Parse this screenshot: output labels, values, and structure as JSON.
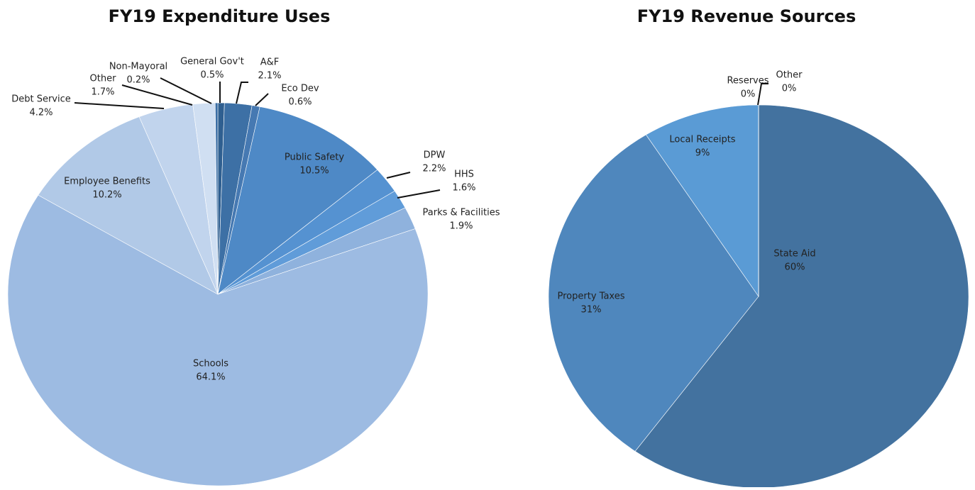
{
  "chart_data": [
    {
      "type": "pie",
      "title": "FY19 Expenditure Uses",
      "categories": [
        "General Gov't",
        "A&F",
        "Eco Dev",
        "Public Safety",
        "DPW",
        "HHS",
        "Parks & Facilities",
        "Schools",
        "Employee Benefits",
        "Debt Service",
        "Other",
        "Non-Mayoral"
      ],
      "values": [
        0.5,
        2.1,
        0.6,
        10.5,
        2.2,
        1.6,
        1.9,
        64.1,
        10.2,
        4.2,
        1.7,
        0.2
      ],
      "value_labels": [
        "0.5%",
        "2.1%",
        "0.6%",
        "10.5%",
        "2.2%",
        "1.6%",
        "1.9%",
        "64.1%",
        "10.2%",
        "4.2%",
        "1.7%",
        "0.2%"
      ],
      "colors": [
        "#2f5f90",
        "#3d70a5",
        "#4679b2",
        "#4e89c6",
        "#5592d1",
        "#609cd9",
        "#8fb2dd",
        "#9dbbe2",
        "#b1c9e7",
        "#c1d4ed",
        "#d0dff2",
        "#3a6ea5"
      ]
    },
    {
      "type": "pie",
      "title": "FY19 Revenue Sources",
      "categories": [
        "State Aid",
        "Property Taxes",
        "Local Receipts",
        "Reserves",
        "Other"
      ],
      "values": [
        60,
        31,
        9,
        0,
        0
      ],
      "value_labels": [
        "60%",
        "31%",
        "9%",
        "0%",
        "0%"
      ],
      "colors": [
        "#43729f",
        "#4f87bd",
        "#5a9bd5",
        "#a8c4e4",
        "#c9daf0"
      ]
    }
  ]
}
